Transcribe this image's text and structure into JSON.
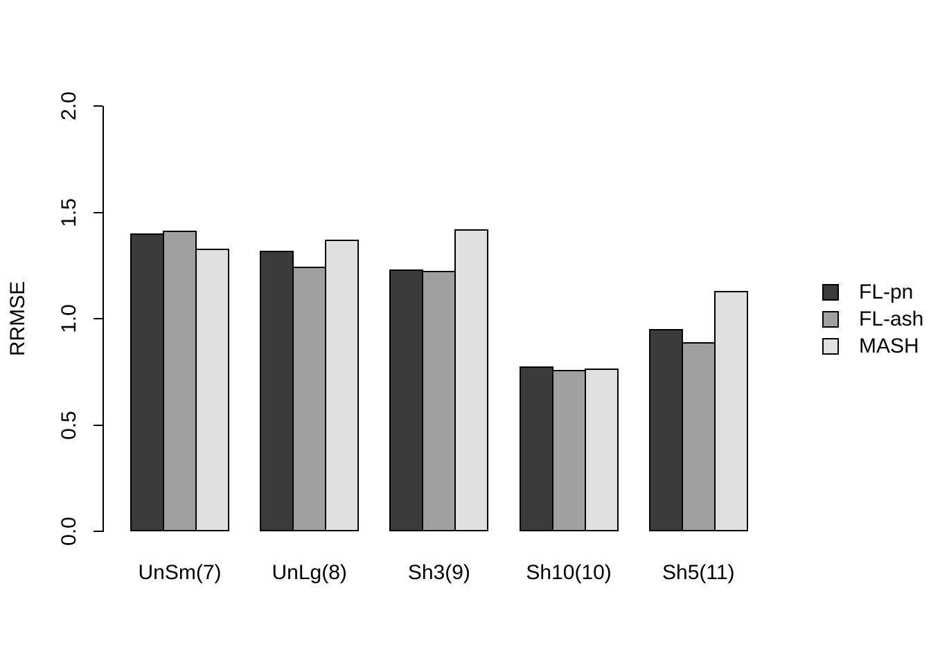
{
  "chart_data": {
    "type": "bar",
    "title": "",
    "xlabel": "",
    "ylabel": "RRMSE",
    "categories": [
      "UnSm(7)",
      "UnLg(8)",
      "Sh3(9)",
      "Sh10(10)",
      "Sh5(11)"
    ],
    "series": [
      {
        "name": "FL-pn",
        "color": "#3b3b3b",
        "values": [
          1.4,
          1.32,
          1.23,
          0.775,
          0.95
        ]
      },
      {
        "name": "FL-ash",
        "color": "#a0a0a0",
        "values": [
          1.415,
          1.245,
          1.225,
          0.758,
          0.89
        ]
      },
      {
        "name": "MASH",
        "color": "#e0e0e0",
        "values": [
          1.33,
          1.37,
          1.42,
          0.765,
          1.13
        ]
      }
    ],
    "ylim": [
      0.0,
      2.0
    ],
    "yticks": [
      0.0,
      0.5,
      1.0,
      1.5,
      2.0
    ],
    "ytick_labels": [
      "0.0",
      "0.5",
      "1.0",
      "1.5",
      "2.0"
    ],
    "grid": false,
    "legend_position": "right",
    "bar_border_color": "#000000",
    "axis_color": "#000000",
    "background_color": "#ffffff"
  }
}
